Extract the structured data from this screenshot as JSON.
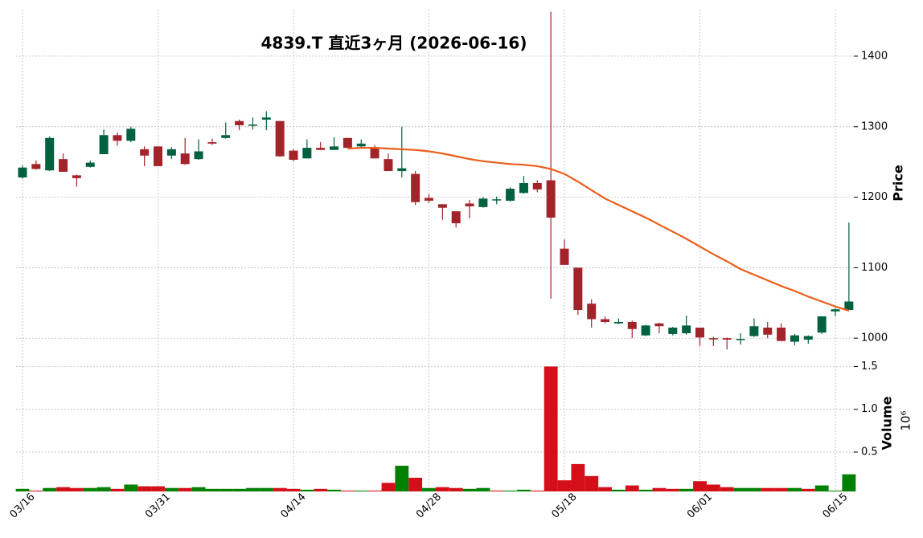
{
  "chart_data": {
    "type": "candlestick",
    "title": "4839.T  直近3ヶ月  (2026-06-16)",
    "categories": [
      "03/16",
      null,
      null,
      null,
      null,
      null,
      null,
      null,
      null,
      null,
      "03/31",
      null,
      null,
      null,
      null,
      null,
      null,
      null,
      null,
      null,
      "04/14",
      null,
      null,
      null,
      null,
      null,
      null,
      null,
      null,
      null,
      "04/28",
      null,
      null,
      null,
      null,
      null,
      null,
      null,
      null,
      null,
      "05/18",
      null,
      null,
      null,
      null,
      null,
      null,
      null,
      null,
      null,
      "06/01",
      null,
      null,
      null,
      null,
      null,
      null,
      null,
      null,
      null,
      "06/15",
      null
    ],
    "open": [
      1228,
      1247,
      1238,
      1254,
      1231,
      1243,
      1261,
      1288,
      1280,
      1268,
      1272,
      1259,
      1262,
      1254,
      1278,
      1284,
      1308,
      1302,
      1310,
      1308,
      1266,
      1255,
      1270,
      1267,
      1284,
      1272,
      1269,
      1254,
      1237,
      1233,
      1199,
      1190,
      1180,
      1191,
      1186,
      1196,
      1195,
      1206,
      1220,
      1224,
      1127,
      1100,
      1049,
      1027,
      1021,
      1023,
      1004,
      1021,
      1006,
      1007,
      1015,
      1000,
      1000,
      998,
      1003,
      1015,
      1015,
      995,
      998,
      1008,
      1038,
      1040
    ],
    "high": [
      1245,
      1252,
      1286,
      1262,
      1232,
      1252,
      1296,
      1292,
      1300,
      1272,
      1272,
      1271,
      1284,
      1282,
      1283,
      1306,
      1310,
      1313,
      1322,
      1308,
      1268,
      1282,
      1278,
      1285,
      1284,
      1282,
      1274,
      1262,
      1300,
      1237,
      1204,
      1190,
      1180,
      1196,
      1200,
      1201,
      1214,
      1230,
      1224,
      1463,
      1140,
      1100,
      1055,
      1031,
      1028,
      1025,
      1019,
      1022,
      1016,
      1032,
      1015,
      1002,
      1001,
      1007,
      1028,
      1023,
      1021,
      1006,
      1004,
      1031,
      1043,
      1164
    ],
    "low": [
      1226,
      1239,
      1237,
      1236,
      1215,
      1242,
      1261,
      1273,
      1278,
      1244,
      1244,
      1254,
      1246,
      1253,
      1274,
      1283,
      1295,
      1296,
      1295,
      1257,
      1251,
      1255,
      1267,
      1267,
      1270,
      1270,
      1255,
      1237,
      1228,
      1189,
      1192,
      1168,
      1157,
      1170,
      1185,
      1190,
      1194,
      1205,
      1207,
      1056,
      1104,
      1033,
      1015,
      1021,
      1020,
      1000,
      1003,
      1007,
      1004,
      1005,
      989,
      989,
      984,
      991,
      1002,
      1000,
      996,
      990,
      992,
      1006,
      1031,
      1040
    ],
    "close": [
      1242,
      1240,
      1284,
      1236,
      1227,
      1249,
      1288,
      1280,
      1297,
      1259,
      1244,
      1268,
      1247,
      1265,
      1276,
      1288,
      1302,
      1303,
      1313,
      1258,
      1253,
      1270,
      1267,
      1272,
      1270,
      1276,
      1255,
      1237,
      1241,
      1193,
      1195,
      1185,
      1163,
      1187,
      1198,
      1197,
      1212,
      1220,
      1211,
      1171,
      1104,
      1040,
      1027,
      1023,
      1023,
      1013,
      1018,
      1017,
      1015,
      1018,
      1001,
      999,
      998,
      999,
      1017,
      1005,
      996,
      1004,
      1003,
      1031,
      1041,
      1052
    ],
    "up_color": "#00613f",
    "down_color": "#a3232b",
    "ylabel": "Price",
    "ylim": [
      974,
      1466
    ],
    "yticks": [
      1000,
      1100,
      1200,
      1300,
      1400
    ],
    "grid": true,
    "moving_average": {
      "color": "#eb5e1c",
      "values": [
        null,
        null,
        null,
        null,
        null,
        null,
        null,
        null,
        null,
        null,
        null,
        null,
        null,
        null,
        null,
        null,
        null,
        null,
        null,
        null,
        null,
        null,
        null,
        null,
        1269,
        1270,
        1270,
        1269,
        1268,
        1267,
        1265,
        1262,
        1258,
        1254,
        1251,
        1249,
        1247,
        1246,
        1244,
        1240,
        1233,
        1222,
        1210,
        1198,
        1189,
        1180,
        1171,
        1161,
        1151,
        1141,
        1130,
        1119,
        1109,
        1098,
        1090,
        1082,
        1074,
        1067,
        1059,
        1052,
        1045,
        1039
      ]
    },
    "volume": {
      "values": [
        0.07,
        0.05,
        0.08,
        0.09,
        0.08,
        0.08,
        0.09,
        0.07,
        0.12,
        0.1,
        0.1,
        0.08,
        0.08,
        0.09,
        0.07,
        0.07,
        0.07,
        0.08,
        0.08,
        0.08,
        0.07,
        0.06,
        0.07,
        0.06,
        0.05,
        0.05,
        0.05,
        0.14,
        0.34,
        0.2,
        0.08,
        0.09,
        0.08,
        0.07,
        0.08,
        0.05,
        0.05,
        0.06,
        0.05,
        1.5,
        0.17,
        0.36,
        0.22,
        0.09,
        0.06,
        0.11,
        0.06,
        0.08,
        0.07,
        0.07,
        0.16,
        0.12,
        0.09,
        0.08,
        0.08,
        0.08,
        0.08,
        0.08,
        0.07,
        0.11,
        0.05,
        0.24
      ],
      "up_color": "#008000",
      "down_color": "#d40f1a",
      "ylabel": "Volume",
      "offset_label": "10⁶",
      "ylim": [
        0.04,
        1.57
      ],
      "yticks": [
        0.5,
        {
          "value": 1,
          "label": "1.0"
        },
        1.5
      ]
    }
  }
}
